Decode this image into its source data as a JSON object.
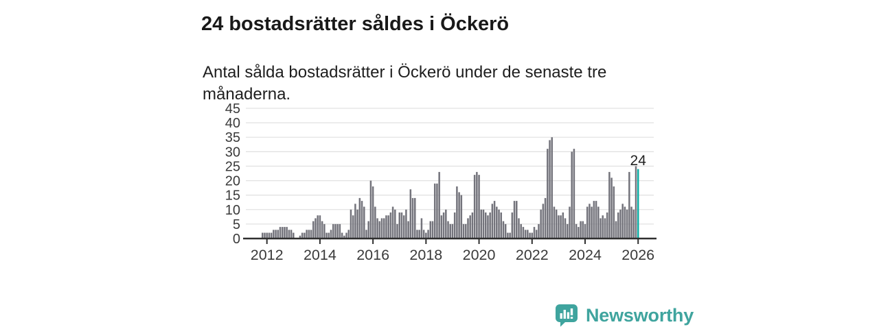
{
  "header": {
    "title": "24 bostadsrätter såldes i Öckerö",
    "subtitle": "Antal sålda bostadsrätter i Öckerö under de senaste tre månaderna."
  },
  "chart_data": {
    "type": "bar",
    "title": "24 bostadsrätter såldes i Öckerö",
    "xlabel": "",
    "ylabel": "",
    "x_frequency": "monthly",
    "x_domain_start": "2011-11",
    "x_domain_end": "2026-01",
    "x_tick_labels": [
      "2012",
      "2014",
      "2016",
      "2018",
      "2020",
      "2022",
      "2024",
      "2026"
    ],
    "y_tick_labels": [
      "0",
      "5",
      "10",
      "15",
      "20",
      "25",
      "30",
      "35",
      "40",
      "45"
    ],
    "y_ticks": [
      0,
      5,
      10,
      15,
      20,
      25,
      30,
      35,
      40,
      45
    ],
    "ylim": [
      0,
      45
    ],
    "grid": true,
    "legend": false,
    "bar_color": "#73737B",
    "grid_color": "#e2e2e2",
    "axis_color": "#2f2f2f",
    "tick_label_color": "#3a3a3a",
    "values": [
      2,
      2,
      2,
      2,
      2,
      3,
      3,
      3,
      4,
      4,
      4,
      4,
      3,
      3,
      2,
      0,
      0,
      1,
      2,
      2,
      3,
      3,
      3,
      6,
      7,
      8,
      8,
      6,
      5,
      2,
      2,
      3,
      5,
      5,
      5,
      5,
      2,
      1,
      2,
      3,
      10,
      8,
      12,
      10,
      14,
      13,
      11,
      3,
      6,
      20,
      18,
      11,
      7,
      6,
      7,
      7,
      8,
      8,
      9,
      11,
      10,
      5,
      9,
      9,
      8,
      10,
      6,
      17,
      14,
      14,
      3,
      3,
      7,
      3,
      2,
      3,
      6,
      6,
      19,
      19,
      23,
      8,
      9,
      10,
      6,
      5,
      5,
      9,
      18,
      16,
      15,
      5,
      5,
      7,
      8,
      9,
      22,
      23,
      22,
      10,
      10,
      9,
      8,
      9,
      12,
      13,
      11,
      10,
      9,
      6,
      5,
      2,
      2,
      9,
      13,
      13,
      7,
      5,
      4,
      3,
      3,
      2,
      2,
      4,
      3,
      5,
      10,
      12,
      14,
      31,
      34,
      35,
      11,
      10,
      8,
      8,
      9,
      7,
      5,
      11,
      30,
      31,
      5,
      4,
      6,
      6,
      5,
      11,
      12,
      11,
      13,
      13,
      11,
      7,
      8,
      7,
      9,
      23,
      21,
      18,
      6,
      9,
      10,
      12,
      11,
      10,
      23,
      11,
      10,
      25,
      24
    ],
    "highlight": {
      "index": 170,
      "value": 24,
      "label": "24",
      "color": "#0FAEA5"
    }
  },
  "footer": {
    "brand": "Newsworthy",
    "brand_color": "#3FA49E",
    "logo_icon": "newsworthy-speech-bubble-bar-chart-icon"
  }
}
